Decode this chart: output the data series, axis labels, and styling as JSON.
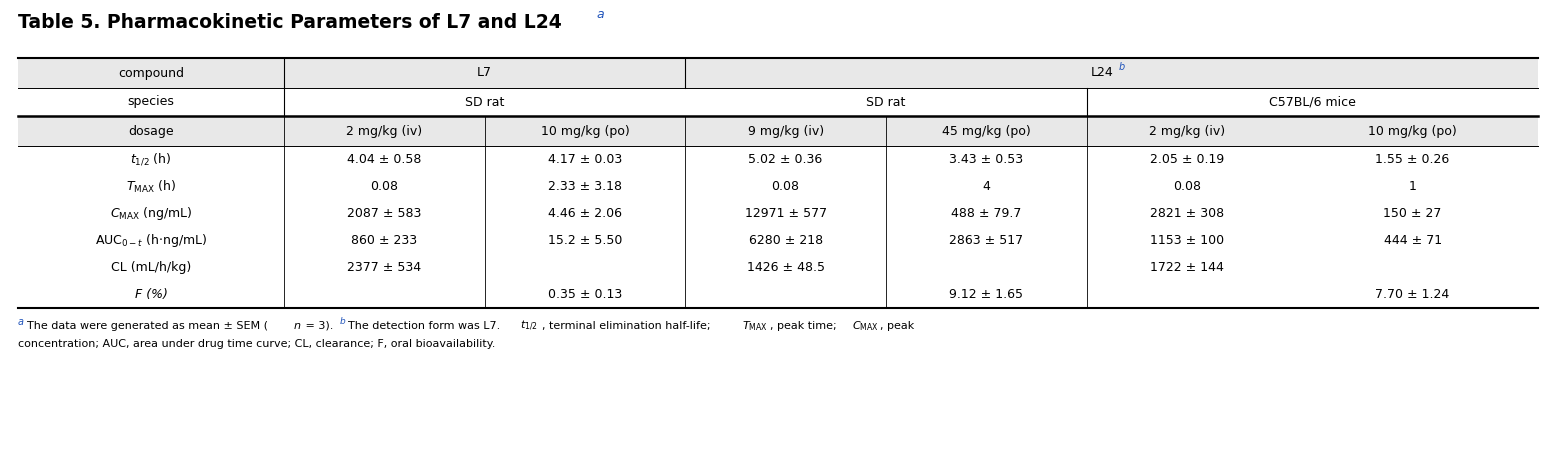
{
  "title_main": "Table 5. Pharmacokinetic Parameters of L7 and L24",
  "title_sup": "a",
  "header_bg": "#e8e8e8",
  "data_rows": [
    [
      "4.04 ± 0.58",
      "4.17 ± 0.03",
      "5.02 ± 0.36",
      "3.43 ± 0.53",
      "2.05 ± 0.19",
      "1.55 ± 0.26"
    ],
    [
      "0.08",
      "2.33 ± 3.18",
      "0.08",
      "4",
      "0.08",
      "1"
    ],
    [
      "2087 ± 583",
      "4.46 ± 2.06",
      "12971 ± 577",
      "488 ± 79.7",
      "2821 ± 308",
      "150 ± 27"
    ],
    [
      "860 ± 233",
      "15.2 ± 5.50",
      "6280 ± 218",
      "2863 ± 517",
      "1153 ± 100",
      "444 ± 71"
    ],
    [
      "2377 ± 534",
      "",
      "1426 ± 48.5",
      "",
      "1722 ± 144",
      ""
    ],
    [
      "",
      "0.35 ± 0.13",
      "",
      "9.12 ± 1.65",
      "",
      "7.70 ± 1.24"
    ]
  ],
  "dosage_row": [
    "2 mg/kg (iv)",
    "10 mg/kg (po)",
    "9 mg/kg (iv)",
    "45 mg/kg (po)",
    "2 mg/kg (iv)",
    "10 mg/kg (po)"
  ],
  "figsize": [
    15.48,
    4.5
  ],
  "dpi": 100
}
